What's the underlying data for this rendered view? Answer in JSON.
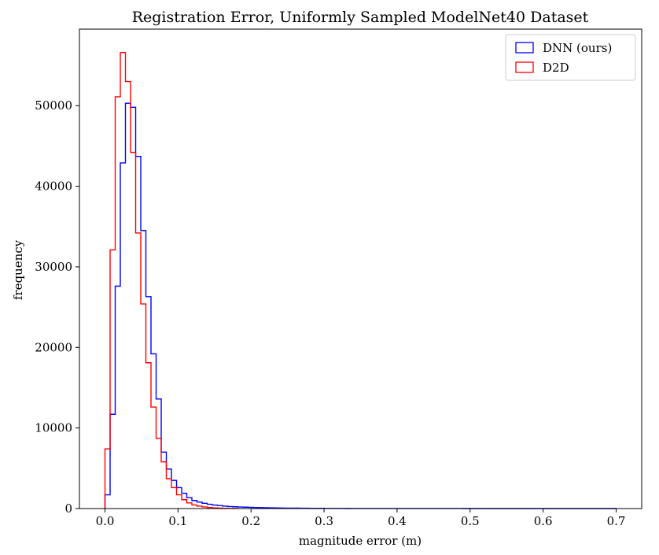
{
  "chart_data": {
    "type": "histogram",
    "title": "Registration Error, Uniformly Sampled ModelNet40 Dataset",
    "xlabel": "magnitude error (m)",
    "ylabel": "frequency",
    "xlim": [
      -0.035,
      0.735
    ],
    "ylim": [
      0,
      59500
    ],
    "xticks": [
      0.0,
      0.1,
      0.2,
      0.3,
      0.4,
      0.5,
      0.6,
      0.7
    ],
    "xtick_labels": [
      "0.0",
      "0.1",
      "0.2",
      "0.3",
      "0.4",
      "0.5",
      "0.6",
      "0.7"
    ],
    "yticks": [
      0,
      10000,
      20000,
      30000,
      40000,
      50000
    ],
    "ytick_labels": [
      "0",
      "10000",
      "20000",
      "30000",
      "40000",
      "50000"
    ],
    "grid": false,
    "legend_position": "top-right",
    "series": [
      {
        "name": "DNN (ours)",
        "color": "#0000ff",
        "bin_start": 0.0,
        "bin_width": 0.007,
        "values": [
          1700,
          11700,
          27600,
          42900,
          50300,
          49800,
          43700,
          34500,
          26300,
          19200,
          13600,
          7000,
          4900,
          3500,
          2600,
          1900,
          1350,
          1000,
          800,
          650,
          530,
          430,
          370,
          300,
          250,
          220,
          190,
          170,
          150,
          130,
          115,
          100,
          90,
          80,
          70,
          60,
          55,
          50,
          45,
          40,
          35,
          30,
          25,
          22,
          20,
          18,
          15,
          12,
          10,
          8,
          7,
          6,
          5,
          5,
          4,
          4,
          3,
          3,
          3,
          2,
          2,
          2,
          2,
          2,
          2,
          2,
          2,
          2,
          2,
          2,
          1,
          1,
          1,
          1,
          1,
          1,
          1,
          1,
          1,
          1,
          1,
          1,
          1,
          1,
          1,
          1,
          1,
          1,
          1,
          1,
          1,
          1,
          1,
          1,
          1,
          1,
          1,
          1,
          1,
          1
        ]
      },
      {
        "name": "D2D",
        "color": "#ff0000",
        "bin_start": 0.0,
        "bin_width": 0.007,
        "values": [
          7400,
          32100,
          51100,
          56600,
          53000,
          44200,
          34200,
          25400,
          18100,
          12600,
          8700,
          5800,
          3700,
          2600,
          1700,
          1100,
          700,
          450,
          300,
          200,
          130,
          80,
          50,
          30,
          20,
          10
        ]
      }
    ]
  }
}
